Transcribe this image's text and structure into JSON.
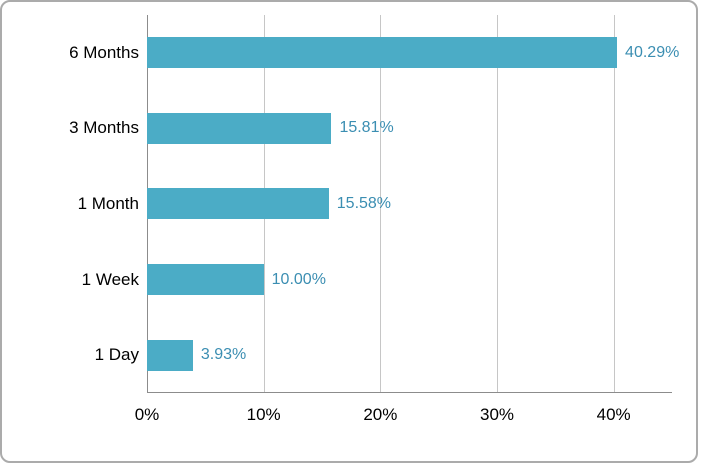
{
  "chart_data": {
    "type": "bar",
    "orientation": "horizontal",
    "title": "",
    "xlabel": "",
    "ylabel": "",
    "categories": [
      "6 Months",
      "3 Months",
      "1 Month",
      "1 Week",
      "1 Day"
    ],
    "values": [
      40.29,
      15.81,
      15.58,
      10.0,
      3.93
    ],
    "value_labels": [
      "40.29%",
      "15.81%",
      "15.58%",
      "10.00%",
      "3.93%"
    ],
    "x_ticks": [
      {
        "value": 0,
        "label": "0%"
      },
      {
        "value": 10,
        "label": "10%"
      },
      {
        "value": 20,
        "label": "20%"
      },
      {
        "value": 30,
        "label": "30%"
      },
      {
        "value": 40,
        "label": "40%"
      }
    ],
    "xlim": [
      0,
      45
    ],
    "grid": true,
    "legend": false,
    "colors": {
      "bar": "#4bacc6",
      "value_label": "#3b8eb2",
      "gridline": "#c6c6c6",
      "axis_line": "#8c8c8c",
      "text": "#000000",
      "card_border": "#ababab",
      "background": "#ffffff"
    }
  }
}
